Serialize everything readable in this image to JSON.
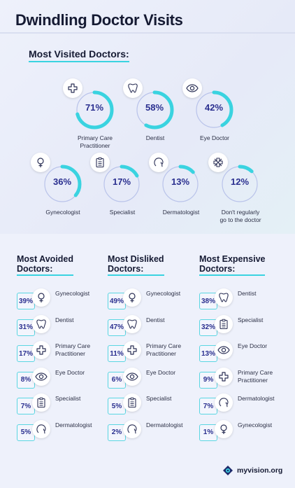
{
  "title": "Dwindling Doctor Visits",
  "most_visited": {
    "heading": "Most Visited Doctors:",
    "items": [
      {
        "pct": "71%",
        "label": "Primary Care\nPractitioner",
        "icon": "cross-icon",
        "value": 0.71
      },
      {
        "pct": "58%",
        "label": "Dentist",
        "icon": "tooth-icon",
        "value": 0.58
      },
      {
        "pct": "42%",
        "label": "Eye Doctor",
        "icon": "eye-icon",
        "value": 0.42
      },
      {
        "pct": "36%",
        "label": "Gynecologist",
        "icon": "female-icon",
        "value": 0.36
      },
      {
        "pct": "17%",
        "label": "Specialist",
        "icon": "clipboard-icon",
        "value": 0.17
      },
      {
        "pct": "13%",
        "label": "Dermatologist",
        "icon": "head-icon",
        "value": 0.13
      },
      {
        "pct": "12%",
        "label": "Don't regularly\ngo to the doctor",
        "icon": "no-cross-icon",
        "value": 0.12
      }
    ]
  },
  "avoided": {
    "heading": "Most Avoided\nDoctors:",
    "rows": [
      {
        "pct": "39%",
        "label": "Gynecologist",
        "icon": "female-icon"
      },
      {
        "pct": "31%",
        "label": "Dentist",
        "icon": "tooth-icon"
      },
      {
        "pct": "17%",
        "label": "Primary Care\nPractitioner",
        "icon": "cross-icon"
      },
      {
        "pct": "8%",
        "label": "Eye Doctor",
        "icon": "eye-icon"
      },
      {
        "pct": "7%",
        "label": "Specialist",
        "icon": "clipboard-icon"
      },
      {
        "pct": "5%",
        "label": "Dermatologist",
        "icon": "head-icon"
      }
    ]
  },
  "disliked": {
    "heading": "Most Disliked\nDoctors:",
    "rows": [
      {
        "pct": "49%",
        "label": "Gynecologist",
        "icon": "female-icon"
      },
      {
        "pct": "47%",
        "label": "Dentist",
        "icon": "tooth-icon"
      },
      {
        "pct": "11%",
        "label": "Primary Care\nPractitioner",
        "icon": "cross-icon"
      },
      {
        "pct": "6%",
        "label": "Eye Doctor",
        "icon": "eye-icon"
      },
      {
        "pct": "5%",
        "label": "Specialist",
        "icon": "clipboard-icon"
      },
      {
        "pct": "2%",
        "label": "Dermatologist",
        "icon": "head-icon"
      }
    ]
  },
  "expensive": {
    "heading": "Most Expensive\nDoctors:",
    "rows": [
      {
        "pct": "38%",
        "label": "Dentist",
        "icon": "tooth-icon"
      },
      {
        "pct": "32%",
        "label": "Specialist",
        "icon": "clipboard-icon"
      },
      {
        "pct": "13%",
        "label": "Eye Doctor",
        "icon": "eye-icon"
      },
      {
        "pct": "9%",
        "label": "Primary Care\nPractitioner",
        "icon": "cross-icon"
      },
      {
        "pct": "7%",
        "label": "Dermatologist",
        "icon": "head-icon"
      },
      {
        "pct": "1%",
        "label": "Gynecologist",
        "icon": "female-icon"
      }
    ]
  },
  "brand": {
    "name": "myvision.org"
  },
  "colors": {
    "accent": "#3ad3e0",
    "ring_track": "#b9c3ea",
    "number": "#2a2f8f"
  }
}
